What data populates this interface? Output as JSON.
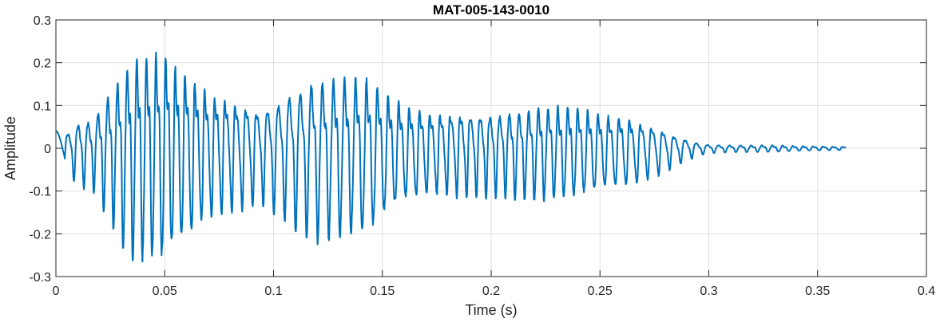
{
  "chart_data": {
    "type": "line",
    "title": "MAT-005-143-0010",
    "xlabel": "Time (s)",
    "ylabel": "Amplitude",
    "xlim": [
      0,
      0.4
    ],
    "ylim": [
      -0.3,
      0.3
    ],
    "grid": true,
    "x_ticks": [
      0,
      0.05,
      0.1,
      0.15,
      0.2,
      0.25,
      0.3,
      0.35,
      0.4
    ],
    "x_tick_labels": [
      "0",
      "0.05",
      "0.1",
      "0.15",
      "0.2",
      "0.25",
      "0.3",
      "0.35",
      "0.4"
    ],
    "y_ticks": [
      -0.3,
      -0.2,
      -0.1,
      0,
      0.1,
      0.2,
      0.3
    ],
    "y_tick_labels": [
      "-0.3",
      "-0.2",
      "-0.1",
      "0",
      "0.1",
      "0.2",
      "0.3"
    ],
    "series": [
      {
        "color": "#0072bd",
        "duration": 0.363,
        "envelope": [
          [
            0.0,
            0.04
          ],
          [
            0.004,
            0.04
          ],
          [
            0.006,
            0.05
          ],
          [
            0.009,
            0.07
          ],
          [
            0.012,
            0.08
          ],
          [
            0.016,
            0.08
          ],
          [
            0.018,
            0.09
          ],
          [
            0.021,
            0.12
          ],
          [
            0.024,
            0.15
          ],
          [
            0.027,
            0.17
          ],
          [
            0.031,
            0.21
          ],
          [
            0.035,
            0.235
          ],
          [
            0.04,
            0.24
          ],
          [
            0.045,
            0.245
          ],
          [
            0.05,
            0.245
          ],
          [
            0.055,
            0.215
          ],
          [
            0.06,
            0.2
          ],
          [
            0.065,
            0.175
          ],
          [
            0.07,
            0.155
          ],
          [
            0.075,
            0.145
          ],
          [
            0.08,
            0.135
          ],
          [
            0.085,
            0.13
          ],
          [
            0.09,
            0.12
          ],
          [
            0.095,
            0.115
          ],
          [
            0.1,
            0.13
          ],
          [
            0.105,
            0.145
          ],
          [
            0.11,
            0.165
          ],
          [
            0.115,
            0.18
          ],
          [
            0.12,
            0.19
          ],
          [
            0.125,
            0.19
          ],
          [
            0.13,
            0.19
          ],
          [
            0.135,
            0.185
          ],
          [
            0.14,
            0.185
          ],
          [
            0.145,
            0.18
          ],
          [
            0.15,
            0.15
          ],
          [
            0.155,
            0.13
          ],
          [
            0.16,
            0.115
          ],
          [
            0.165,
            0.11
          ],
          [
            0.17,
            0.1
          ],
          [
            0.175,
            0.1
          ],
          [
            0.18,
            0.1
          ],
          [
            0.185,
            0.1
          ],
          [
            0.19,
            0.1
          ],
          [
            0.195,
            0.1
          ],
          [
            0.2,
            0.1
          ],
          [
            0.205,
            0.1
          ],
          [
            0.21,
            0.105
          ],
          [
            0.215,
            0.105
          ],
          [
            0.22,
            0.11
          ],
          [
            0.225,
            0.11
          ],
          [
            0.23,
            0.11
          ],
          [
            0.235,
            0.11
          ],
          [
            0.24,
            0.105
          ],
          [
            0.245,
            0.1
          ],
          [
            0.25,
            0.09
          ],
          [
            0.255,
            0.085
          ],
          [
            0.26,
            0.085
          ],
          [
            0.265,
            0.08
          ],
          [
            0.27,
            0.07
          ],
          [
            0.275,
            0.06
          ],
          [
            0.28,
            0.05
          ],
          [
            0.285,
            0.035
          ],
          [
            0.29,
            0.025
          ],
          [
            0.295,
            0.015
          ],
          [
            0.3,
            0.01
          ],
          [
            0.31,
            0.008
          ],
          [
            0.32,
            0.008
          ],
          [
            0.33,
            0.008
          ],
          [
            0.34,
            0.006
          ],
          [
            0.35,
            0.005
          ],
          [
            0.363,
            0.004
          ]
        ]
      }
    ]
  }
}
